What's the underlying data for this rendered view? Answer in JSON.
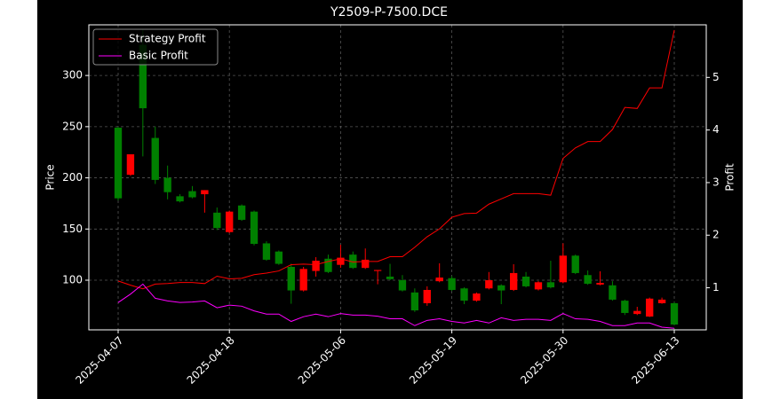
{
  "chart_data": {
    "type": "candlestick",
    "title": "Y2509-P-7500.DCE",
    "y_label": "Price",
    "y2_label": "Profit",
    "categories": [
      "2025-04-07",
      null,
      null,
      null,
      null,
      null,
      null,
      null,
      null,
      "2025-04-18",
      null,
      null,
      null,
      null,
      null,
      null,
      null,
      null,
      "2025-05-06",
      null,
      null,
      null,
      null,
      null,
      null,
      null,
      null,
      "2025-05-19",
      null,
      null,
      null,
      null,
      null,
      null,
      null,
      null,
      "2025-05-30",
      null,
      null,
      null,
      null,
      null,
      null,
      null,
      null,
      "2025-06-13"
    ],
    "open": [
      249,
      203,
      330,
      239,
      200,
      182,
      187,
      184,
      166,
      147,
      173,
      167,
      136,
      128,
      113,
      90,
      109,
      121,
      115,
      125,
      112,
      109,
      103.5,
      100,
      88,
      77.5,
      99,
      102,
      92,
      80,
      92,
      95,
      90.5,
      103.5,
      91,
      98,
      98,
      124,
      105,
      95.7,
      95,
      80,
      67,
      64.5,
      77.5,
      77.5
    ],
    "high": [
      250,
      223,
      345,
      250,
      212,
      184,
      192,
      188,
      171,
      168,
      174,
      168,
      138,
      129,
      116,
      113,
      122.5,
      125,
      134.6,
      128,
      131,
      110,
      116,
      105,
      92,
      94,
      116.5,
      104,
      93,
      88,
      108,
      96,
      115.6,
      108,
      99,
      119,
      136,
      125,
      109.5,
      108.7,
      99,
      81,
      74,
      83,
      83,
      78.5
    ],
    "low": [
      178,
      202,
      221,
      194,
      179,
      176,
      180,
      166,
      149,
      146,
      158,
      134,
      119,
      115,
      77,
      89,
      103.5,
      107,
      112,
      111,
      111,
      96,
      100,
      89,
      69,
      75,
      98,
      89.5,
      76.6,
      79,
      91,
      76.6,
      89.5,
      93,
      90,
      92,
      97,
      106,
      95.5,
      95,
      80,
      66,
      66,
      64,
      77,
      56
    ],
    "close": [
      180,
      223,
      268,
      198,
      186,
      177,
      181,
      188,
      151,
      167,
      159,
      135.5,
      120,
      116,
      90,
      111,
      119,
      108,
      122,
      112,
      120,
      110,
      101,
      90,
      70.5,
      90.5,
      102.6,
      90.5,
      80,
      87,
      100,
      90,
      107,
      94,
      98,
      93,
      124,
      107,
      96.5,
      97.4,
      81,
      68,
      70,
      82,
      81,
      56.7
    ],
    "up_color": "#ff0000",
    "down_color": "#008000",
    "series": [
      {
        "name": "Strategy Profit",
        "color": "#ff0000",
        "axis": "y2",
        "values": [
          1.13,
          1.05,
          0.98,
          1.07,
          1.08,
          1.1,
          1.1,
          1.08,
          1.22,
          1.17,
          1.18,
          1.25,
          1.28,
          1.32,
          1.44,
          1.45,
          1.44,
          1.5,
          1.55,
          1.49,
          1.5,
          1.5,
          1.59,
          1.59,
          1.77,
          1.97,
          2.12,
          2.34,
          2.41,
          2.42,
          2.59,
          2.69,
          2.79,
          2.79,
          2.79,
          2.76,
          3.46,
          3.66,
          3.78,
          3.78,
          4.01,
          4.43,
          4.41,
          4.8,
          4.8,
          5.9
        ]
      },
      {
        "name": "Basic Profit",
        "color": "#ff00ff",
        "axis": "y2",
        "values": [
          0.72,
          0.88,
          1.07,
          0.8,
          0.75,
          0.72,
          0.73,
          0.75,
          0.62,
          0.67,
          0.65,
          0.56,
          0.5,
          0.5,
          0.36,
          0.45,
          0.5,
          0.45,
          0.51,
          0.48,
          0.48,
          0.46,
          0.41,
          0.41,
          0.28,
          0.38,
          0.41,
          0.36,
          0.33,
          0.38,
          0.33,
          0.43,
          0.38,
          0.4,
          0.4,
          0.38,
          0.51,
          0.41,
          0.4,
          0.36,
          0.28,
          0.28,
          0.33,
          0.33,
          0.25,
          0.23
        ]
      }
    ],
    "ylim": [
      51.5,
      349.5
    ],
    "yticks": [
      100,
      150,
      200,
      250,
      300
    ],
    "y2lim": [
      0.2,
      6.0
    ],
    "y2ticks": [
      1,
      2,
      3,
      4,
      5
    ],
    "grid": true,
    "legend": "upper left"
  }
}
